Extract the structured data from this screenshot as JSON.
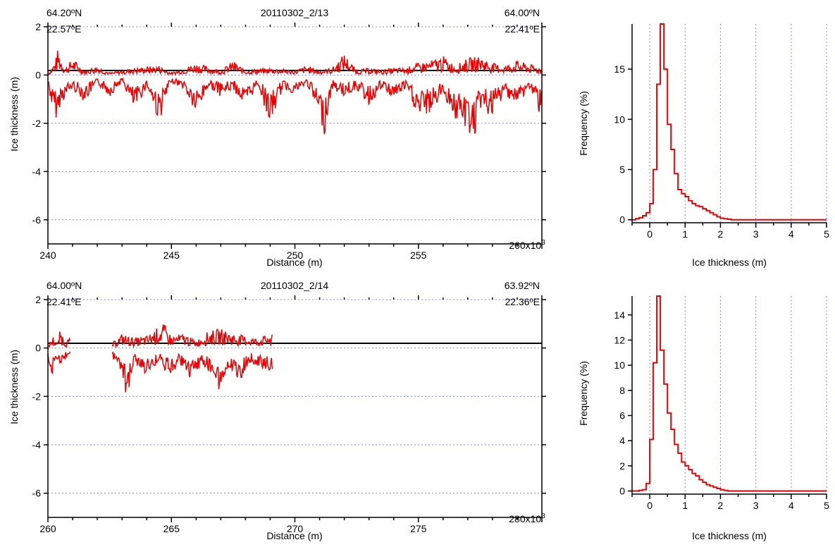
{
  "chart_data": [
    {
      "type": "line",
      "panel": "profile-top",
      "title": "20110302_2/13",
      "corner_labels": {
        "left_lat": "64.20ºN",
        "left_lon": "22.57ºE",
        "right_lat": "64.00ºN",
        "right_lon": "22.41ºE"
      },
      "xlabel": "Distance (m)",
      "ylabel": "Ice thickness (m)",
      "xlim": [
        240000,
        260000
      ],
      "ylim": [
        -7,
        2
      ],
      "x_ticks": [
        240,
        245,
        250,
        255
      ],
      "x_tick_last": "260x10",
      "x_tick_exponent": "3",
      "y_ticks": [
        2,
        0,
        -2,
        -4,
        -6
      ],
      "grid": "horizontal-dotted",
      "zero_line": true,
      "series": [
        {
          "color": "#ee0000",
          "segments": [
            [
              240000,
              260000
            ]
          ],
          "top_points": [
            [
              240000,
              0.05
            ],
            [
              240300,
              0.6
            ],
            [
              240400,
              1.1
            ],
            [
              240700,
              0.3
            ],
            [
              241000,
              0.7
            ],
            [
              241500,
              0.2
            ],
            [
              242000,
              0.4
            ],
            [
              242500,
              0.1
            ],
            [
              243500,
              0.3
            ],
            [
              244500,
              0.4
            ],
            [
              245000,
              0.1
            ],
            [
              246000,
              0.5
            ],
            [
              247000,
              0.2
            ],
            [
              247500,
              0.6
            ],
            [
              248000,
              0.2
            ],
            [
              249000,
              0.3
            ],
            [
              250000,
              0.2
            ],
            [
              250500,
              0.4
            ],
            [
              251000,
              0.2
            ],
            [
              251500,
              0.3
            ],
            [
              252000,
              0.9
            ],
            [
              252500,
              0.2
            ],
            [
              253000,
              0.3
            ],
            [
              253500,
              0.2
            ],
            [
              254000,
              0.3
            ],
            [
              254500,
              0.3
            ],
            [
              255000,
              0.5
            ],
            [
              255500,
              0.6
            ],
            [
              256000,
              0.8
            ],
            [
              256500,
              0.4
            ],
            [
              257000,
              0.7
            ],
            [
              257500,
              0.8
            ],
            [
              258000,
              0.5
            ],
            [
              258500,
              0.4
            ],
            [
              259000,
              0.6
            ],
            [
              260000,
              0.3
            ]
          ],
          "bottom_points": [
            [
              240000,
              -0.4
            ],
            [
              240200,
              -1.6
            ],
            [
              240400,
              -1.9
            ],
            [
              240500,
              -1.2
            ],
            [
              241000,
              -0.6
            ],
            [
              241500,
              -1.1
            ],
            [
              242000,
              -0.4
            ],
            [
              242500,
              -0.9
            ],
            [
              243000,
              -0.3
            ],
            [
              243500,
              -1.5
            ],
            [
              244000,
              -0.5
            ],
            [
              244500,
              -2.0
            ],
            [
              245000,
              -0.3
            ],
            [
              245500,
              -0.6
            ],
            [
              246000,
              -1.7
            ],
            [
              246500,
              -0.5
            ],
            [
              247000,
              -0.9
            ],
            [
              247500,
              -0.6
            ],
            [
              248000,
              -1.4
            ],
            [
              248500,
              -0.4
            ],
            [
              249000,
              -2.1
            ],
            [
              249500,
              -0.6
            ],
            [
              250000,
              -0.8
            ],
            [
              250500,
              -0.4
            ],
            [
              251000,
              -1.8
            ],
            [
              251200,
              -2.5
            ],
            [
              251500,
              -0.6
            ],
            [
              252000,
              -0.9
            ],
            [
              252500,
              -0.6
            ],
            [
              253000,
              -1.3
            ],
            [
              253500,
              -0.6
            ],
            [
              254000,
              -1.0
            ],
            [
              254500,
              -0.6
            ],
            [
              255000,
              -1.8
            ],
            [
              255500,
              -1.6
            ],
            [
              256000,
              -0.8
            ],
            [
              256500,
              -1.9
            ],
            [
              257000,
              -2.4
            ],
            [
              257300,
              -2.7
            ],
            [
              257500,
              -1.4
            ],
            [
              258000,
              -1.8
            ],
            [
              258500,
              -0.8
            ],
            [
              259000,
              -1.3
            ],
            [
              259500,
              -0.6
            ],
            [
              260000,
              -1.8
            ]
          ]
        }
      ]
    },
    {
      "type": "line",
      "panel": "histogram-top",
      "xlabel": "Ice thickness (m)",
      "ylabel": "Frequency (%)",
      "xlim": [
        -0.5,
        5
      ],
      "ylim": [
        -0.3,
        19.5
      ],
      "x_ticks": [
        0,
        1,
        2,
        3,
        4,
        5
      ],
      "y_ticks": [
        0,
        5,
        10,
        15
      ],
      "grid": "vertical-dotted",
      "series": [
        {
          "color": "#ee0000",
          "step": true,
          "bin_width": 0.1,
          "x": [
            -0.5,
            -0.4,
            -0.3,
            -0.2,
            -0.1,
            0.0,
            0.1,
            0.2,
            0.3,
            0.4,
            0.5,
            0.6,
            0.7,
            0.8,
            0.9,
            1.0,
            1.1,
            1.2,
            1.3,
            1.4,
            1.5,
            1.6,
            1.7,
            1.8,
            1.9,
            2.0,
            2.1,
            2.2,
            2.3
          ],
          "values": [
            0.0,
            0.1,
            0.2,
            0.4,
            0.7,
            1.6,
            5.0,
            13.5,
            19.5,
            15.0,
            9.5,
            7.0,
            4.6,
            3.0,
            2.6,
            2.3,
            1.9,
            1.6,
            1.4,
            1.3,
            1.1,
            0.9,
            0.7,
            0.5,
            0.3,
            0.15,
            0.1,
            0.05,
            0.0
          ],
          "tail_value": 0.0
        }
      ]
    },
    {
      "type": "line",
      "panel": "profile-bottom",
      "title": "20110302_2/14",
      "corner_labels": {
        "left_lat": "64.00ºN",
        "left_lon": "22.41ºE",
        "right_lat": "63.92ºN",
        "right_lon": "22.36ºE"
      },
      "xlabel": "Distance (m)",
      "ylabel": "Ice thickness (m)",
      "xlim": [
        260000,
        280000
      ],
      "ylim": [
        -7,
        2
      ],
      "x_ticks": [
        260,
        265,
        270,
        275
      ],
      "x_tick_last": "280x10",
      "x_tick_exponent": "3",
      "y_ticks": [
        2,
        0,
        -2,
        -4,
        -6
      ],
      "grid": "horizontal-dotted",
      "zero_line": true,
      "series": [
        {
          "color": "#ee0000",
          "segments": [
            [
              260000,
              260900
            ],
            [
              262600,
              269100
            ]
          ],
          "top_points": [
            [
              260000,
              0.1
            ],
            [
              260200,
              0.5
            ],
            [
              260400,
              0.2
            ],
            [
              260500,
              0.8
            ],
            [
              260700,
              0.3
            ],
            [
              260900,
              0.4
            ],
            [
              262600,
              0.2
            ],
            [
              263000,
              0.6
            ],
            [
              263500,
              0.4
            ],
            [
              264000,
              0.5
            ],
            [
              264500,
              0.9
            ],
            [
              264700,
              1.0
            ],
            [
              265000,
              0.5
            ],
            [
              265500,
              0.6
            ],
            [
              266000,
              0.3
            ],
            [
              266500,
              0.7
            ],
            [
              267000,
              0.8
            ],
            [
              267500,
              0.6
            ],
            [
              268000,
              0.5
            ],
            [
              268500,
              0.4
            ],
            [
              269000,
              0.6
            ],
            [
              269100,
              0.7
            ]
          ],
          "bottom_points": [
            [
              260000,
              -0.4
            ],
            [
              260100,
              -1.4
            ],
            [
              260300,
              -0.6
            ],
            [
              260500,
              -0.9
            ],
            [
              260700,
              -0.5
            ],
            [
              260900,
              -0.2
            ],
            [
              262600,
              -0.4
            ],
            [
              262900,
              -0.9
            ],
            [
              263200,
              -2.1
            ],
            [
              263500,
              -0.6
            ],
            [
              264000,
              -1.2
            ],
            [
              264500,
              -0.6
            ],
            [
              265000,
              -1.3
            ],
            [
              265300,
              -0.6
            ],
            [
              265800,
              -1.5
            ],
            [
              266200,
              -0.7
            ],
            [
              266700,
              -1.2
            ],
            [
              267000,
              -1.9
            ],
            [
              267300,
              -0.8
            ],
            [
              267800,
              -1.4
            ],
            [
              268200,
              -0.6
            ],
            [
              268700,
              -0.9
            ],
            [
              269100,
              -1.0
            ]
          ]
        }
      ]
    },
    {
      "type": "line",
      "panel": "histogram-bottom",
      "xlabel": "Ice thickness (m)",
      "ylabel": "Frequency (%)",
      "xlim": [
        -0.5,
        5
      ],
      "ylim": [
        -0.25,
        15.5
      ],
      "x_ticks": [
        0,
        1,
        2,
        3,
        4,
        5
      ],
      "y_ticks": [
        0,
        2,
        4,
        6,
        8,
        10,
        12,
        14
      ],
      "grid": "vertical-dotted",
      "series": [
        {
          "color": "#ee0000",
          "step": true,
          "bin_width": 0.1,
          "x": [
            -0.5,
            -0.4,
            -0.3,
            -0.2,
            -0.1,
            0.0,
            0.1,
            0.2,
            0.3,
            0.4,
            0.5,
            0.6,
            0.7,
            0.8,
            0.9,
            1.0,
            1.1,
            1.2,
            1.3,
            1.4,
            1.5,
            1.6,
            1.7,
            1.8,
            1.9,
            2.0,
            2.1,
            2.2
          ],
          "values": [
            0.0,
            0.0,
            0.05,
            0.1,
            0.6,
            4.1,
            10.2,
            15.5,
            11.2,
            8.5,
            6.2,
            4.9,
            3.7,
            3.0,
            2.3,
            2.0,
            1.7,
            1.4,
            1.2,
            0.9,
            0.7,
            0.5,
            0.4,
            0.3,
            0.2,
            0.1,
            0.05,
            0.0
          ],
          "tail_value": 0.0
        }
      ]
    }
  ]
}
